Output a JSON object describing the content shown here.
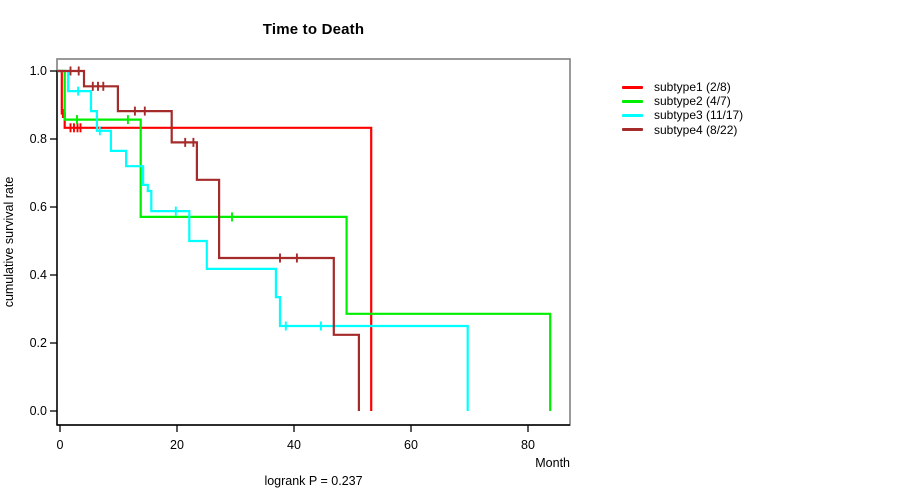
{
  "title": "Time to Death",
  "colors": {
    "background": "#ffffff",
    "box": "#808080",
    "axis": "#000000",
    "text": "#000000",
    "subtype1": "#ff0000",
    "subtype2": "#00ee00",
    "subtype3": "#00ffff",
    "subtype4": "#a52a2a"
  },
  "chart_data": {
    "type": "line",
    "subtype": "kaplan-meier-step-curves",
    "title": "Time to Death",
    "xlabel": "Month",
    "ylabel": "cumulative survival rate",
    "annotation": "logrank P = 0.237",
    "xlim": [
      0,
      87
    ],
    "ylim": [
      0.0,
      1.0
    ],
    "grid": false,
    "legend_position": "right-outside",
    "x_ticks": [
      0,
      20,
      40,
      60,
      80
    ],
    "x_tick_labels": [
      "0",
      "20",
      "40",
      "60",
      "80"
    ],
    "y_ticks": [
      1.0,
      0.8,
      0.6,
      0.4,
      0.2,
      0.0
    ],
    "y_tick_labels": [
      "1.0",
      "0.8",
      "0.6",
      "0.4",
      "0.2",
      "0.0"
    ],
    "series": [
      {
        "name": "subtype1 (2/8)",
        "color": "#ff0000",
        "steps": [
          [
            0,
            1.0
          ],
          [
            0.3,
            0.875
          ],
          [
            0.8,
            0.833
          ],
          [
            53.2,
            0.0
          ]
        ],
        "censors": [
          [
            0.5,
            0.875
          ],
          [
            1.8,
            0.833
          ],
          [
            2.4,
            0.833
          ],
          [
            3.0,
            0.833
          ],
          [
            3.5,
            0.833
          ]
        ]
      },
      {
        "name": "subtype2 (4/7)",
        "color": "#00ee00",
        "steps": [
          [
            0,
            1.0
          ],
          [
            0.8,
            0.857
          ],
          [
            13.8,
            0.571
          ],
          [
            49.0,
            0.286
          ],
          [
            83.8,
            0.0
          ]
        ],
        "censors": [
          [
            2.9,
            0.857
          ],
          [
            11.6,
            0.857
          ],
          [
            29.4,
            0.571
          ]
        ]
      },
      {
        "name": "subtype3 (11/17)",
        "color": "#00ffff",
        "steps": [
          [
            0,
            1.0
          ],
          [
            1.4,
            0.941
          ],
          [
            5.3,
            0.882
          ],
          [
            6.3,
            0.824
          ],
          [
            8.7,
            0.765
          ],
          [
            11.3,
            0.72
          ],
          [
            14.2,
            0.665
          ],
          [
            15.0,
            0.647
          ],
          [
            15.6,
            0.588
          ],
          [
            22.1,
            0.5
          ],
          [
            25.1,
            0.418
          ],
          [
            36.9,
            0.335
          ],
          [
            37.6,
            0.25
          ],
          [
            69.7,
            0.0
          ]
        ],
        "censors": [
          [
            3.1,
            0.941
          ],
          [
            6.8,
            0.824
          ],
          [
            19.8,
            0.588
          ],
          [
            38.6,
            0.25
          ],
          [
            44.6,
            0.25
          ]
        ]
      },
      {
        "name": "subtype4 (8/22)",
        "color": "#a52a2a",
        "steps": [
          [
            0,
            1.0
          ],
          [
            4.1,
            0.955
          ],
          [
            9.9,
            0.882
          ],
          [
            19.1,
            0.79
          ],
          [
            23.4,
            0.68
          ],
          [
            27.2,
            0.45
          ],
          [
            46.8,
            0.224
          ],
          [
            51.1,
            0.0
          ]
        ],
        "censors": [
          [
            1.8,
            1.0
          ],
          [
            3.2,
            1.0
          ],
          [
            5.6,
            0.955
          ],
          [
            6.5,
            0.955
          ],
          [
            7.4,
            0.955
          ],
          [
            12.8,
            0.882
          ],
          [
            14.5,
            0.882
          ],
          [
            21.4,
            0.79
          ],
          [
            22.8,
            0.79
          ],
          [
            37.6,
            0.45
          ],
          [
            40.5,
            0.45
          ]
        ]
      }
    ]
  }
}
